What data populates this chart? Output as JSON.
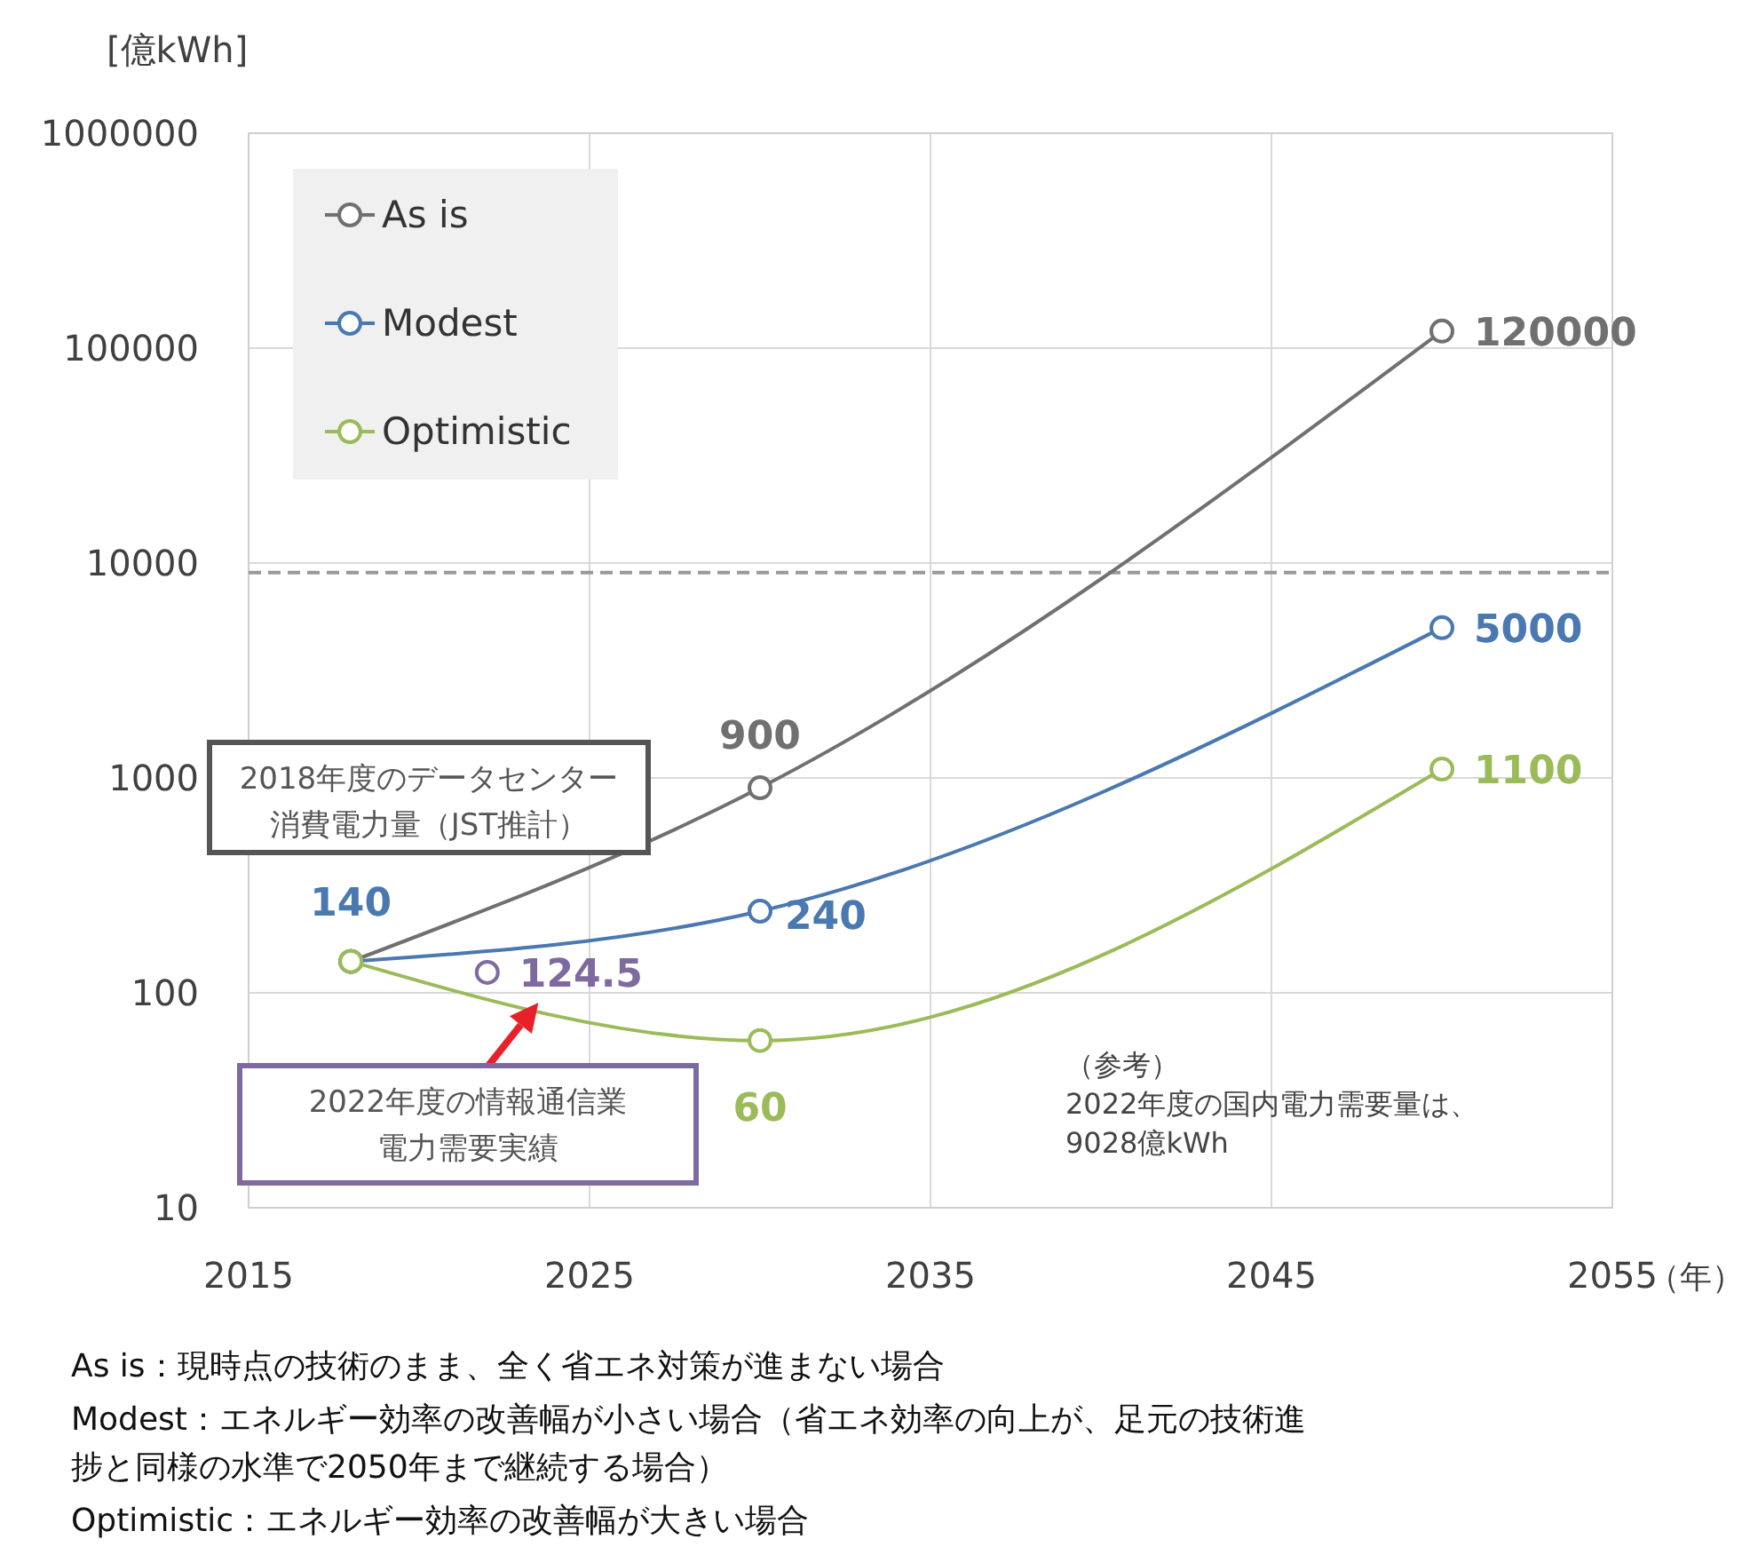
{
  "chart_data": {
    "type": "line",
    "ylabel": "[億kWh]",
    "xlabel": "（年）",
    "x": [
      2018,
      2030,
      2050
    ],
    "xlim": [
      2015,
      2055
    ],
    "xticks": [
      2015,
      2025,
      2035,
      2045,
      2055
    ],
    "ylim": [
      10,
      1000000
    ],
    "yticks": [
      10,
      100,
      1000,
      10000,
      100000,
      1000000
    ],
    "log": true,
    "grid": true,
    "legend": "top left",
    "marker": "circle",
    "line_style": "solid",
    "series": [
      {
        "name": "As is",
        "color": "#707070",
        "values": [
          140,
          900,
          120000
        ],
        "value_labels": [
          null,
          "900",
          "120000"
        ]
      },
      {
        "name": "Modest",
        "color": "#4a78b0",
        "values": [
          140,
          240,
          5000
        ],
        "value_labels": [
          "140",
          "240",
          "5000"
        ]
      },
      {
        "name": "Optimistic",
        "color": "#9bbb59",
        "values": [
          140,
          60,
          1100
        ],
        "value_labels": [
          null,
          "60",
          "1100"
        ]
      },
      {
        "type": "scatter",
        "color": "#7f6a9f",
        "x": [
          2022
        ],
        "values": [
          124.5
        ],
        "value_labels": [
          "124.5"
        ]
      }
    ],
    "ref_lines": [
      {
        "axis": "y",
        "value": 9028,
        "color": "#999999",
        "line_style": "dashed"
      }
    ],
    "annotations": [
      "2018年度のデータセンター消費電力量（JST推計）",
      {
        "text": "2022年度の情報通信業電力需要実績",
        "x": 2023.5,
        "y": 90
      },
      "（参考）\n2022年度の国内電力需要量は、\n9028億kWh",
      "As is：現時点の技術のまま、全く省エネ対策が進まない場合",
      "Modest：エネルギー効率の改善幅が小さい場合（省エネ効率の向上が、足元の技術進捗と同様の水準で2050年まで継続する場合）",
      "Optimistic：エネルギー効率の改善幅が大きい場合"
    ]
  }
}
